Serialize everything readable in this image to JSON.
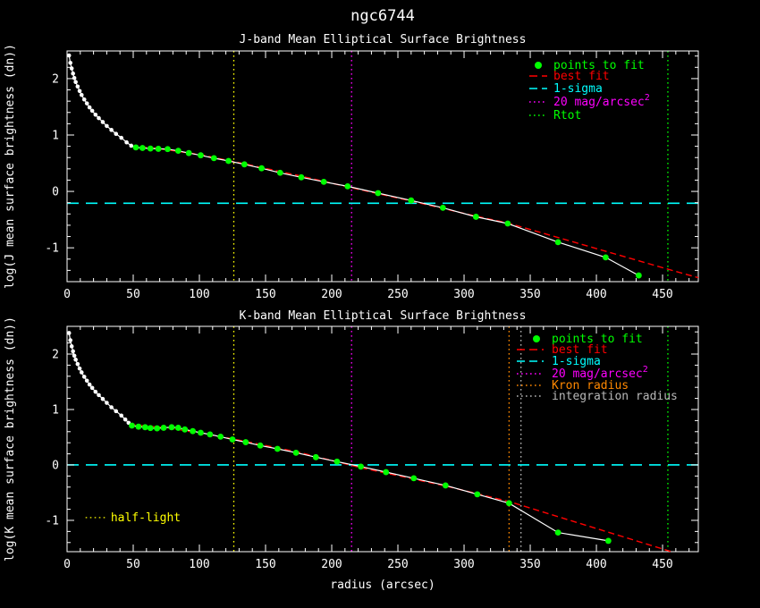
{
  "title": "ngc6744",
  "colors": {
    "background": "#000000",
    "foreground": "#ffffff",
    "points_to_fit": "#00ff00",
    "best_fit": "#ff0000",
    "one_sigma": "#00ffff",
    "mag20": "#ff00ff",
    "rtot": "#00ff00",
    "half_light": "#ffff00",
    "kron_radius": "#ff8800",
    "integration_radius": "#b8b8b8"
  },
  "chart_data": [
    {
      "type": "line",
      "title": "J-band Mean Elliptical Surface Brightness",
      "xlabel": "",
      "ylabel": "log(J mean surface brightness (dn))",
      "xlim": [
        0,
        477
      ],
      "ylim": [
        -1.6,
        2.49
      ],
      "xticks": [
        0,
        50,
        100,
        150,
        200,
        250,
        300,
        350,
        400,
        450
      ],
      "yticks": [
        -1,
        0,
        1,
        2
      ],
      "x_minor_step": 10,
      "y_minor_step": 0.2,
      "grid": false,
      "legend_position": "top-right",
      "series": [
        {
          "name": "profile",
          "style": "line-with-markers",
          "color": "#ffffff",
          "points": [
            [
              1.5,
              2.41
            ],
            [
              2.5,
              2.28
            ],
            [
              3.5,
              2.18
            ],
            [
              4.5,
              2.09
            ],
            [
              5.5,
              2.01
            ],
            [
              6.5,
              1.94
            ],
            [
              8,
              1.86
            ],
            [
              9.5,
              1.78
            ],
            [
              11,
              1.71
            ],
            [
              13,
              1.63
            ],
            [
              15,
              1.56
            ],
            [
              17,
              1.49
            ],
            [
              19,
              1.43
            ],
            [
              21.5,
              1.36
            ],
            [
              24,
              1.3
            ],
            [
              27,
              1.23
            ],
            [
              30,
              1.16
            ],
            [
              33.5,
              1.09
            ],
            [
              37,
              1.02
            ],
            [
              41,
              0.95
            ],
            [
              45,
              0.87
            ],
            [
              48.5,
              0.81
            ]
          ]
        },
        {
          "name": "points to fit",
          "style": "markers",
          "color": "#00ff00",
          "points": [
            [
              52,
              0.78
            ],
            [
              57,
              0.77
            ],
            [
              63,
              0.76
            ],
            [
              69,
              0.755
            ],
            [
              76,
              0.75
            ],
            [
              84,
              0.72
            ],
            [
              92,
              0.68
            ],
            [
              101,
              0.64
            ],
            [
              111,
              0.59
            ],
            [
              122,
              0.54
            ],
            [
              134,
              0.48
            ],
            [
              147,
              0.41
            ],
            [
              161,
              0.33
            ],
            [
              177,
              0.25
            ],
            [
              194,
              0.17
            ],
            [
              212,
              0.09
            ],
            [
              235,
              -0.03
            ],
            [
              260,
              -0.16
            ],
            [
              284,
              -0.29
            ],
            [
              309,
              -0.45
            ],
            [
              333,
              -0.57
            ],
            [
              371,
              -0.9
            ],
            [
              407,
              -1.17
            ],
            [
              432,
              -1.49
            ]
          ]
        },
        {
          "name": "best fit",
          "style": "dashed-line",
          "color": "#ff0000",
          "points": [
            [
              48,
              0.8
            ],
            [
              69,
              0.76
            ],
            [
              101,
              0.65
            ],
            [
              134,
              0.49
            ],
            [
              177,
              0.27
            ],
            [
              212,
              0.08
            ],
            [
              260,
              -0.17
            ],
            [
              309,
              -0.44
            ],
            [
              333,
              -0.56
            ],
            [
              454,
              -1.38
            ],
            [
              477,
              -1.53
            ]
          ]
        }
      ],
      "hlines": [
        {
          "label": "1-sigma",
          "value": -0.21,
          "color": "#00ffff",
          "style": "dashed"
        }
      ],
      "vlines": [
        {
          "label": "half-light",
          "x": 126,
          "color": "#ffff00",
          "style": "dotted"
        },
        {
          "label": "20 mag/arcsec2",
          "x": 215,
          "color": "#ff00ff",
          "style": "dotted"
        },
        {
          "label": "Rtot",
          "x": 454,
          "color": "#00ff00",
          "style": "dotted"
        }
      ],
      "legend": {
        "entries": [
          {
            "label": "points to fit",
            "color": "#00ff00",
            "marker": "dot"
          },
          {
            "label": "best fit",
            "color": "#ff0000",
            "marker": "dash"
          },
          {
            "label": "1-sigma",
            "color": "#00ffff",
            "marker": "dash"
          },
          {
            "label": "20 mag/arcsec",
            "sup": "2",
            "color": "#ff00ff",
            "marker": "dots"
          },
          {
            "label": "Rtot",
            "color": "#00ff00",
            "marker": "dots"
          }
        ]
      },
      "annotations": []
    },
    {
      "type": "line",
      "title": "K-band Mean Elliptical Surface Brightness",
      "xlabel": "radius (arcsec)",
      "ylabel": "log(K mean surface brightness (dn))",
      "xlim": [
        0,
        477
      ],
      "ylim": [
        -1.565,
        2.5
      ],
      "xticks": [
        0,
        50,
        100,
        150,
        200,
        250,
        300,
        350,
        400,
        450
      ],
      "yticks": [
        -1,
        0,
        1,
        2
      ],
      "x_minor_step": 10,
      "y_minor_step": 0.2,
      "grid": false,
      "legend_position": "top-right",
      "series": [
        {
          "name": "profile",
          "style": "line-with-markers",
          "color": "#ffffff",
          "points": [
            [
              1.5,
              2.38
            ],
            [
              2.5,
              2.25
            ],
            [
              3.5,
              2.14
            ],
            [
              4.5,
              2.05
            ],
            [
              5.5,
              1.97
            ],
            [
              6.5,
              1.9
            ],
            [
              8,
              1.82
            ],
            [
              9.5,
              1.74
            ],
            [
              11,
              1.67
            ],
            [
              13,
              1.59
            ],
            [
              15,
              1.52
            ],
            [
              17,
              1.45
            ],
            [
              19,
              1.39
            ],
            [
              21.5,
              1.32
            ],
            [
              24,
              1.26
            ],
            [
              27,
              1.19
            ],
            [
              30,
              1.12
            ],
            [
              33.5,
              1.04
            ],
            [
              37,
              0.97
            ],
            [
              41,
              0.89
            ],
            [
              44,
              0.82
            ],
            [
              46.5,
              0.76
            ]
          ]
        },
        {
          "name": "points to fit",
          "style": "markers",
          "color": "#00ff00",
          "points": [
            [
              49,
              0.71
            ],
            [
              54,
              0.69
            ],
            [
              59,
              0.68
            ],
            [
              63,
              0.665
            ],
            [
              68,
              0.66
            ],
            [
              73,
              0.67
            ],
            [
              79,
              0.68
            ],
            [
              84,
              0.67
            ],
            [
              89,
              0.64
            ],
            [
              95,
              0.61
            ],
            [
              101,
              0.58
            ],
            [
              108,
              0.55
            ],
            [
              116,
              0.51
            ],
            [
              125,
              0.46
            ],
            [
              135,
              0.41
            ],
            [
              146,
              0.35
            ],
            [
              159,
              0.29
            ],
            [
              173,
              0.22
            ],
            [
              188,
              0.14
            ],
            [
              204,
              0.06
            ],
            [
              222,
              -0.03
            ],
            [
              241,
              -0.13
            ],
            [
              262,
              -0.24
            ],
            [
              286,
              -0.37
            ],
            [
              310,
              -0.53
            ],
            [
              334,
              -0.69
            ],
            [
              371,
              -1.22
            ],
            [
              409,
              -1.37
            ]
          ]
        },
        {
          "name": "best fit",
          "style": "dashed-line",
          "color": "#ff0000",
          "points": [
            [
              47,
              0.73
            ],
            [
              79,
              0.66
            ],
            [
              125,
              0.47
            ],
            [
              173,
              0.24
            ],
            [
              222,
              -0.05
            ],
            [
              286,
              -0.38
            ],
            [
              334,
              -0.66
            ],
            [
              456,
              -1.56
            ]
          ]
        }
      ],
      "hlines": [
        {
          "label": "1-sigma",
          "value": 0.0,
          "color": "#00ffff",
          "style": "dashed"
        }
      ],
      "vlines": [
        {
          "label": "half-light",
          "x": 126,
          "color": "#ffff00",
          "style": "dotted"
        },
        {
          "label": "20 mag/arcsec2",
          "x": 215,
          "color": "#ff00ff",
          "style": "dotted"
        },
        {
          "label": "Kron radius",
          "x": 334,
          "color": "#ff8800",
          "style": "dotted"
        },
        {
          "label": "integration radius",
          "x": 343,
          "color": "#b8b8b8",
          "style": "dotted"
        },
        {
          "label": "Rtot",
          "x": 454,
          "color": "#00ff00",
          "style": "dotted"
        }
      ],
      "legend": {
        "entries": [
          {
            "label": "points to fit",
            "color": "#00ff00",
            "marker": "dot"
          },
          {
            "label": "best fit",
            "color": "#ff0000",
            "marker": "dash"
          },
          {
            "label": "1-sigma",
            "color": "#00ffff",
            "marker": "dash"
          },
          {
            "label": "20 mag/arcsec",
            "sup": "2",
            "color": "#ff00ff",
            "marker": "dots"
          },
          {
            "label": "Kron radius",
            "color": "#ff8800",
            "marker": "dots"
          },
          {
            "label": "integration radius",
            "color": "#b8b8b8",
            "marker": "dots"
          }
        ]
      },
      "annotations": [
        {
          "label": "half-light",
          "color": "#ffff00",
          "x": 33,
          "value": -0.95,
          "marker": "dots",
          "marker_x1": 14,
          "marker_x2": 29
        }
      ]
    }
  ]
}
